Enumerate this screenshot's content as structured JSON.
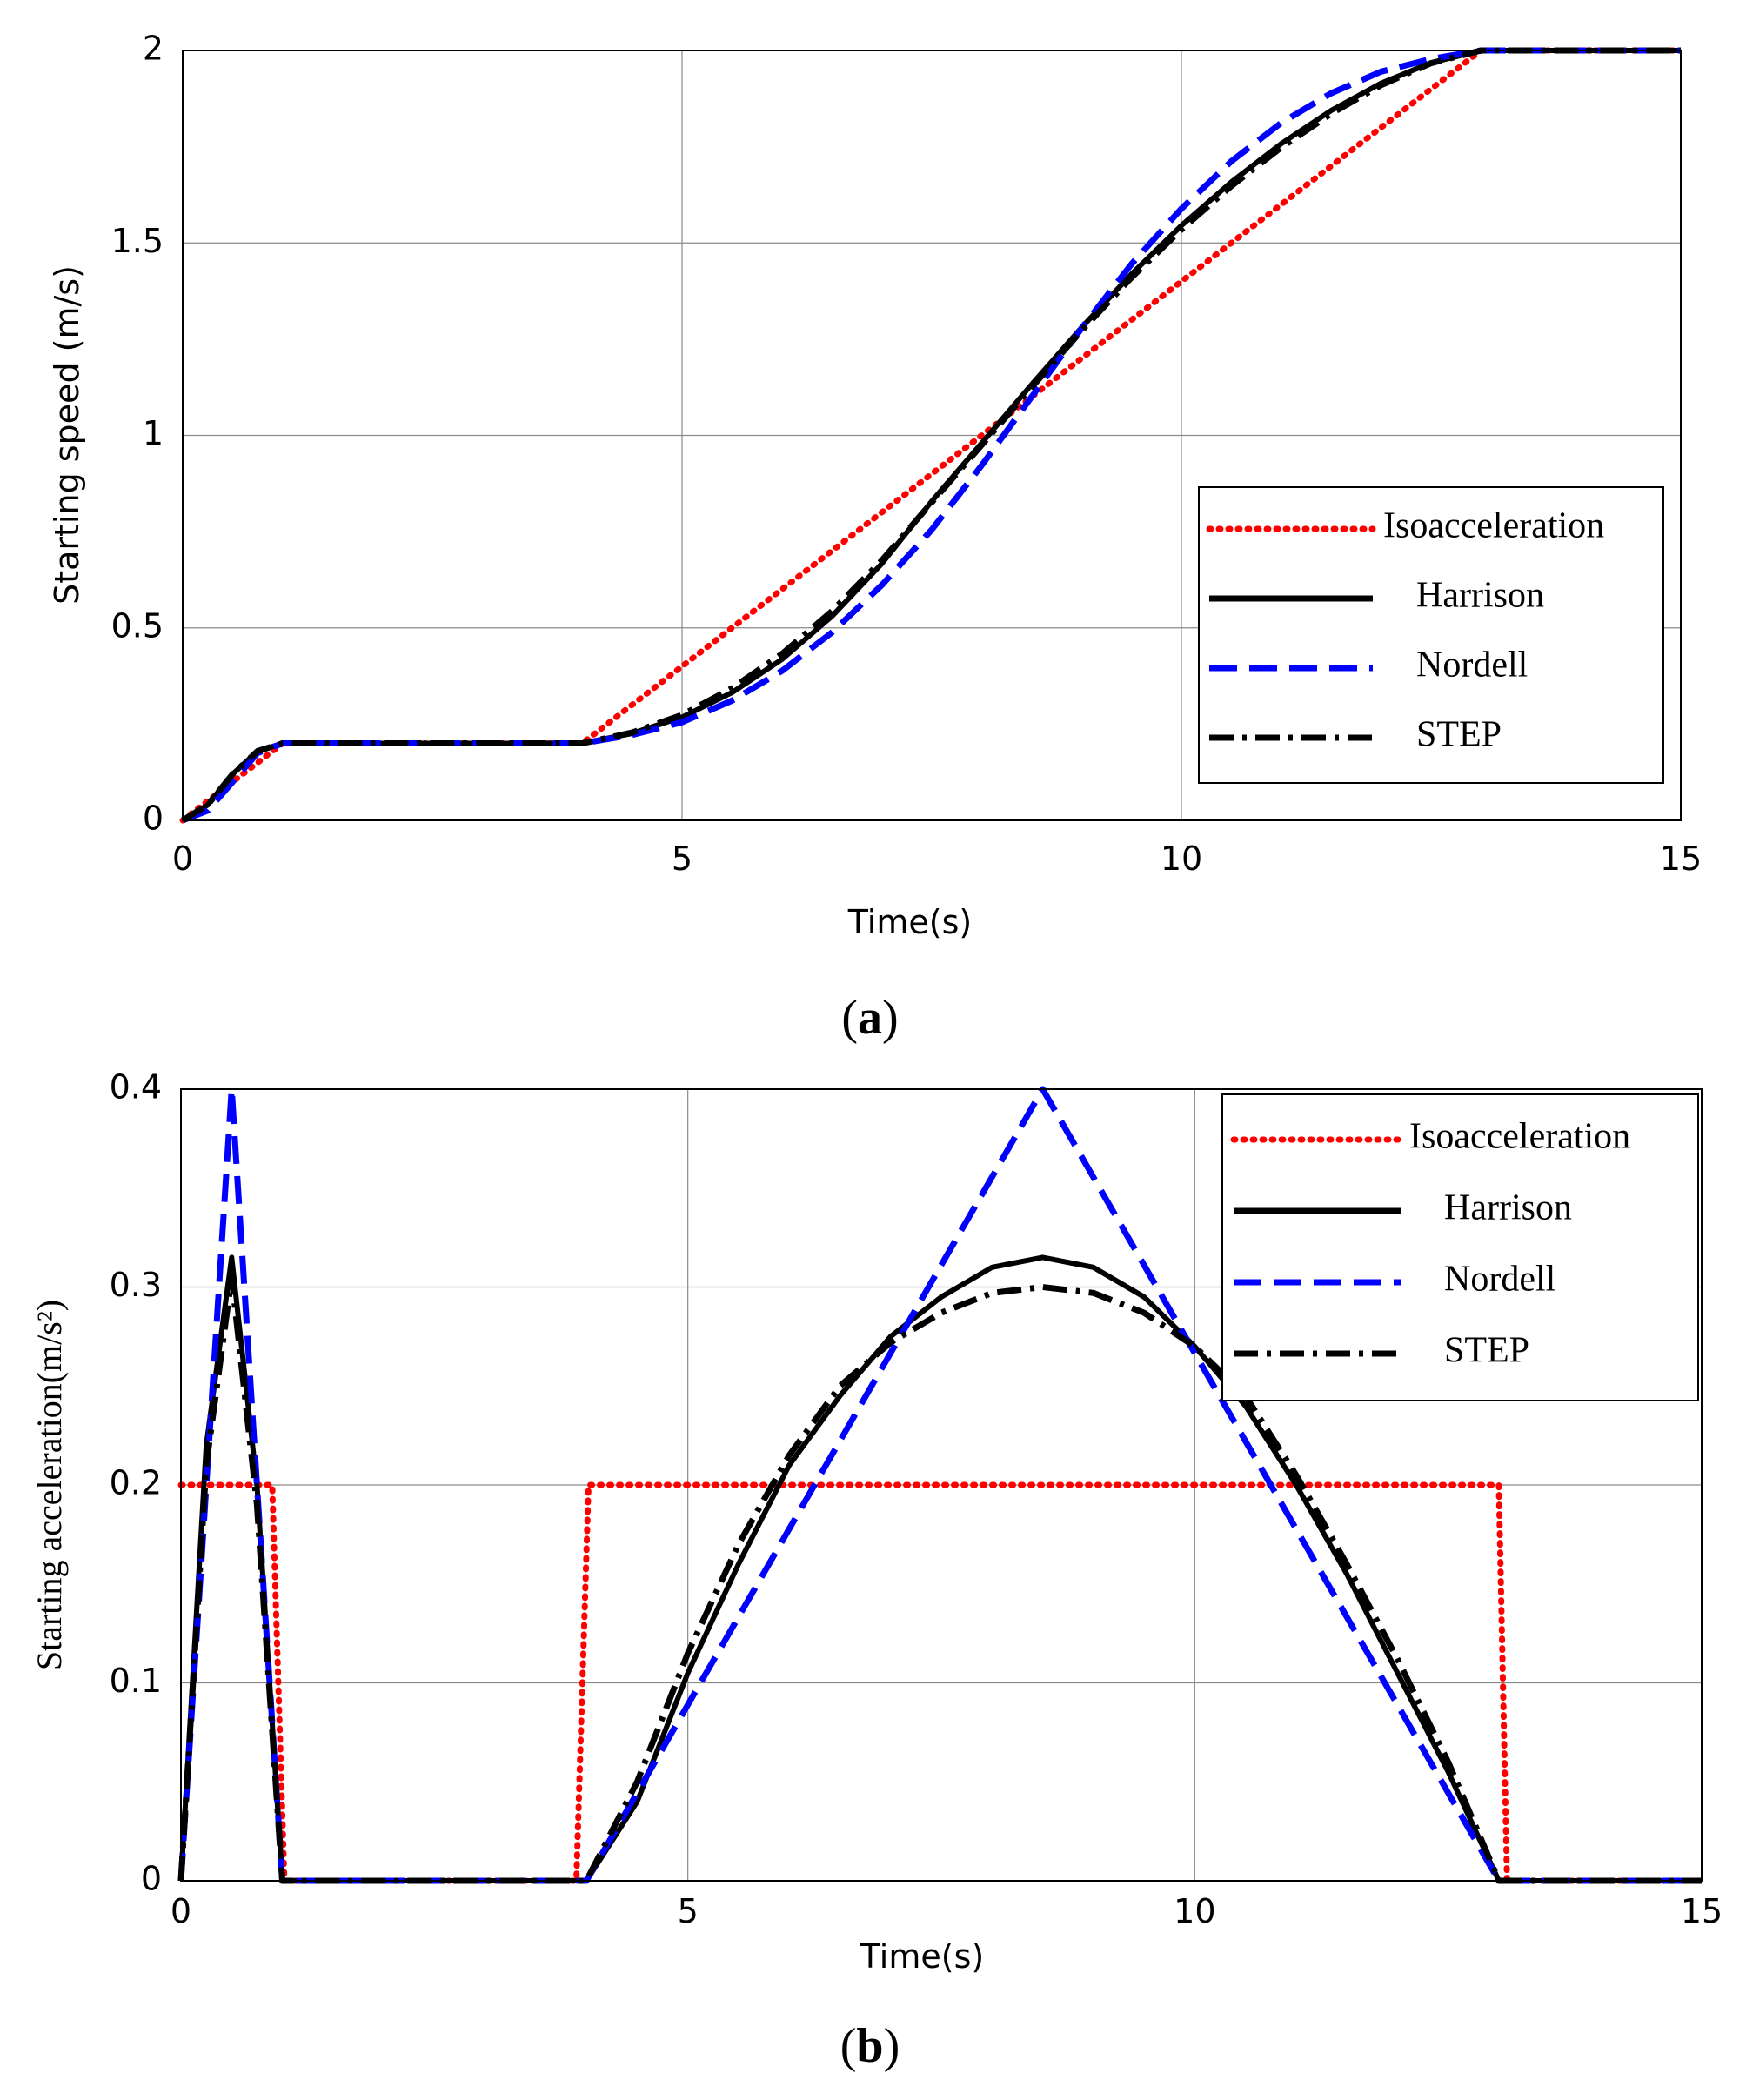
{
  "chart_data": [
    {
      "type": "line",
      "panel_label": "a",
      "xlabel": "Time(s)",
      "ylabel": "Starting speed (m/s)",
      "xlim": [
        0,
        15
      ],
      "ylim": [
        0,
        2
      ],
      "xticks": [
        0,
        5,
        10,
        15
      ],
      "yticks": [
        0,
        0.5,
        1,
        1.5,
        2
      ],
      "ytick_labels": [
        "0",
        "0.5",
        "1",
        "1.5",
        "2"
      ],
      "grid": true,
      "legend_position": "right",
      "series": [
        {
          "name": "Isoacceleration",
          "color": "#ff0000",
          "style": "dotted",
          "x": [
            0,
            1,
            4,
            13,
            15
          ],
          "y": [
            0,
            0.2,
            0.2,
            2,
            2
          ]
        },
        {
          "name": "Harrison",
          "color": "#000000",
          "style": "solid",
          "x": [
            0,
            0.25,
            0.5,
            0.75,
            1,
            4,
            4.5,
            5,
            5.5,
            6,
            6.5,
            7,
            7.5,
            8,
            8.5,
            9,
            9.5,
            10,
            10.5,
            11,
            11.5,
            12,
            12.5,
            13,
            15
          ],
          "y": [
            0,
            0.04,
            0.12,
            0.18,
            0.2,
            0.2,
            0.226,
            0.268,
            0.332,
            0.418,
            0.53,
            0.667,
            0.829,
            0.98,
            1.132,
            1.28,
            1.419,
            1.545,
            1.658,
            1.758,
            1.844,
            1.915,
            1.968,
            2,
            2
          ]
        },
        {
          "name": "Nordell",
          "color": "#0000ff",
          "style": "dashed",
          "x": [
            0,
            0.25,
            0.5,
            0.75,
            1,
            4,
            4.5,
            5,
            5.5,
            6,
            6.5,
            7,
            7.5,
            8,
            8.5,
            9,
            9.5,
            10,
            10.5,
            11,
            11.5,
            12,
            12.5,
            13,
            15
          ],
          "y": [
            0,
            0.025,
            0.1,
            0.175,
            0.2,
            0.2,
            0.222,
            0.255,
            0.311,
            0.388,
            0.488,
            0.611,
            0.755,
            0.922,
            1.1,
            1.278,
            1.445,
            1.589,
            1.712,
            1.812,
            1.889,
            1.945,
            1.978,
            2,
            2
          ]
        },
        {
          "name": "STEP",
          "color": "#000000",
          "style": "dashdot",
          "x": [
            0,
            0.25,
            0.5,
            0.75,
            1,
            4,
            4.5,
            5,
            5.5,
            6,
            6.5,
            7,
            7.5,
            8,
            8.5,
            9,
            9.5,
            10,
            10.5,
            11,
            11.5,
            12,
            12.5,
            13,
            15
          ],
          "y": [
            0,
            0.04,
            0.12,
            0.18,
            0.2,
            0.2,
            0.228,
            0.274,
            0.343,
            0.432,
            0.543,
            0.675,
            0.826,
            0.975,
            1.125,
            1.272,
            1.41,
            1.535,
            1.648,
            1.748,
            1.836,
            1.91,
            1.967,
            2,
            2
          ]
        }
      ]
    },
    {
      "type": "line",
      "panel_label": "b",
      "xlabel": "Time(s)",
      "ylabel": "Starting acceleration(m/s²)",
      "xlim": [
        0,
        15
      ],
      "ylim": [
        0,
        0.4
      ],
      "xticks": [
        0,
        5,
        10,
        15
      ],
      "yticks": [
        0,
        0.1,
        0.2,
        0.3,
        0.4
      ],
      "ytick_labels": [
        "0",
        "0.1",
        "0.2",
        "0.3",
        "0.4"
      ],
      "grid": true,
      "legend_position": "top-right",
      "series": [
        {
          "name": "Isoacceleration",
          "color": "#ff0000",
          "style": "dotted",
          "x": [
            0,
            0.02,
            0.9,
            1.02,
            3.9,
            4.02,
            13,
            13.08,
            15
          ],
          "y": [
            0.2,
            0.2,
            0.2,
            0,
            0,
            0.2,
            0.2,
            0,
            0
          ]
        },
        {
          "name": "Harrison",
          "color": "#000000",
          "style": "solid",
          "x": [
            0,
            0.25,
            0.5,
            0.75,
            1,
            4,
            4.5,
            5,
            5.5,
            6,
            6.5,
            7,
            7.5,
            8,
            8.5,
            9,
            9.5,
            10,
            10.5,
            11,
            11.5,
            12,
            12.5,
            13,
            15
          ],
          "y": [
            0,
            0.22,
            0.315,
            0.2,
            0,
            0,
            0.04,
            0.105,
            0.16,
            0.21,
            0.245,
            0.275,
            0.295,
            0.31,
            0.315,
            0.31,
            0.295,
            0.27,
            0.24,
            0.2,
            0.155,
            0.105,
            0.055,
            0,
            0
          ]
        },
        {
          "name": "Nordell",
          "color": "#0000ff",
          "style": "dashed",
          "x": [
            0,
            0.5,
            1,
            4,
            8.5,
            13,
            15
          ],
          "y": [
            0,
            0.4,
            0,
            0,
            0.4,
            0,
            0
          ]
        },
        {
          "name": "STEP",
          "color": "#000000",
          "style": "dashdot",
          "x": [
            0,
            0.25,
            0.5,
            0.75,
            1,
            4,
            4.5,
            5,
            5.5,
            6,
            6.5,
            7,
            7.5,
            8,
            8.5,
            9,
            9.5,
            10,
            10.5,
            11,
            11.5,
            12,
            12.5,
            13,
            15
          ],
          "y": [
            0,
            0.21,
            0.305,
            0.19,
            0,
            0,
            0.05,
            0.115,
            0.17,
            0.215,
            0.25,
            0.272,
            0.287,
            0.297,
            0.3,
            0.297,
            0.287,
            0.27,
            0.245,
            0.205,
            0.16,
            0.112,
            0.06,
            0,
            0
          ]
        }
      ]
    }
  ]
}
